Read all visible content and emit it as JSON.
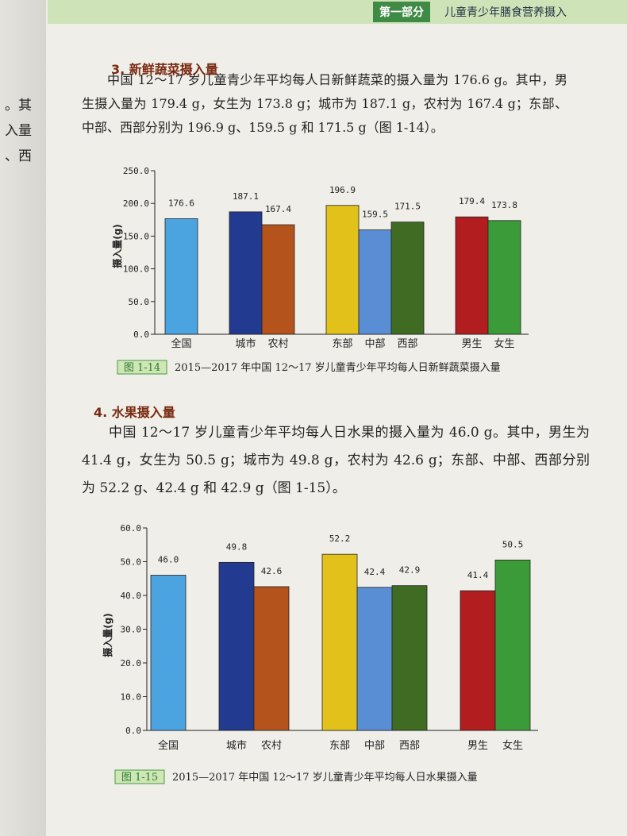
{
  "header": {
    "part": "第一部分",
    "title": "儿童青少年膳食营养摄入"
  },
  "left_page_fragments": [
    "。其",
    "入量",
    "、西"
  ],
  "sections": [
    {
      "heading": "3. 新鲜蔬菜摄入量",
      "paragraph": "中国 12～17 岁儿童青少年平均每人日新鲜蔬菜的摄入量为 176.6 g。其中，男生摄入量为 179.4 g，女生为 173.8 g；城市为 187.1 g，农村为 167.4 g；东部、中部、西部分别为 196.9 g、159.5 g 和 171.5 g（图 1-14）。"
    },
    {
      "heading": "4. 水果摄入量",
      "paragraph": "中国 12～17 岁儿童青少年平均每人日水果的摄入量为 46.0 g。其中，男生为 41.4 g，女生为 50.5 g；城市为 49.8 g，农村为 42.6 g；东部、中部、西部分别为 52.2 g、42.4 g 和 42.9 g（图 1-15）。"
    }
  ],
  "chart_data": [
    {
      "type": "bar",
      "ylabel": "摄入量(g)",
      "figure": "图 1-14",
      "caption": "2015—2017 年中国 12～17 岁儿童青少年平均每人日新鲜蔬菜摄入量",
      "categories": [
        "全国",
        "城市",
        "农村",
        "东部",
        "中部",
        "西部",
        "男生",
        "女生"
      ],
      "values": [
        176.6,
        187.1,
        167.4,
        196.9,
        159.5,
        171.5,
        179.4,
        173.8
      ],
      "colors": [
        "#4ba3df",
        "#223a8f",
        "#b4541c",
        "#e2c21a",
        "#5a8ed4",
        "#3f6b22",
        "#b21d1f",
        "#3c9b39"
      ],
      "ylim": [
        0,
        250
      ],
      "yticks": [
        {
          "value": 0,
          "label": "0.0"
        },
        {
          "value": 50,
          "label": "50.0"
        },
        {
          "value": 100,
          "label": "100.0"
        },
        {
          "value": 150,
          "label": "150.0"
        },
        {
          "value": 200,
          "label": "200.0"
        },
        {
          "value": 250,
          "label": "250.0"
        }
      ]
    },
    {
      "type": "bar",
      "ylabel": "摄入量(g)",
      "figure": "图 1-15",
      "caption": "2015—2017 年中国 12～17 岁儿童青少年平均每人日水果摄入量",
      "categories": [
        "全国",
        "城市",
        "农村",
        "东部",
        "中部",
        "西部",
        "男生",
        "女生"
      ],
      "values": [
        46.0,
        49.8,
        42.6,
        52.2,
        42.4,
        42.9,
        41.4,
        50.5
      ],
      "value_labels": [
        "46.0",
        "49.8",
        "42.6",
        "52.2",
        "42.4",
        "42.9",
        "41.4",
        "50.5"
      ],
      "colors": [
        "#4ba3df",
        "#223a8f",
        "#b4541c",
        "#e2c21a",
        "#5a8ed4",
        "#3f6b22",
        "#b21d1f",
        "#3c9b39"
      ],
      "ylim": [
        0,
        60
      ],
      "yticks": [
        {
          "value": 0,
          "label": "0.0"
        },
        {
          "value": 10,
          "label": "10.0"
        },
        {
          "value": 20,
          "label": "20.0"
        },
        {
          "value": 30,
          "label": "30.0"
        },
        {
          "value": 40,
          "label": "40.0"
        },
        {
          "value": 50,
          "label": "50.0"
        },
        {
          "value": 60,
          "label": "60.0"
        }
      ]
    }
  ]
}
